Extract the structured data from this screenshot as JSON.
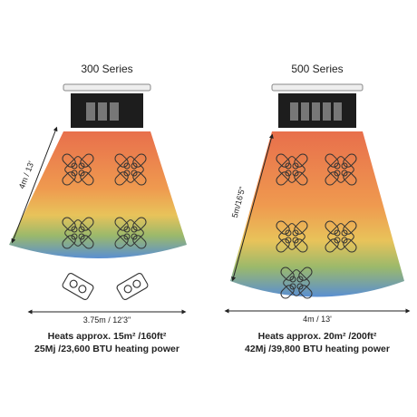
{
  "heaters": [
    {
      "title": "300 Series",
      "height_label": "4m / 13'",
      "width_label": "3.75m / 12'3\"",
      "coverage": "Heats approx. 15m² /160ft²",
      "power": "25Mj /23,600 BTU heating power"
    },
    {
      "title": "500 Series",
      "height_label": "5m/16'5\"",
      "width_label": "4m / 13'",
      "coverage": "Heats approx. 20m² /200ft²",
      "power": "42Mj /39,800 BTU heating power"
    }
  ]
}
